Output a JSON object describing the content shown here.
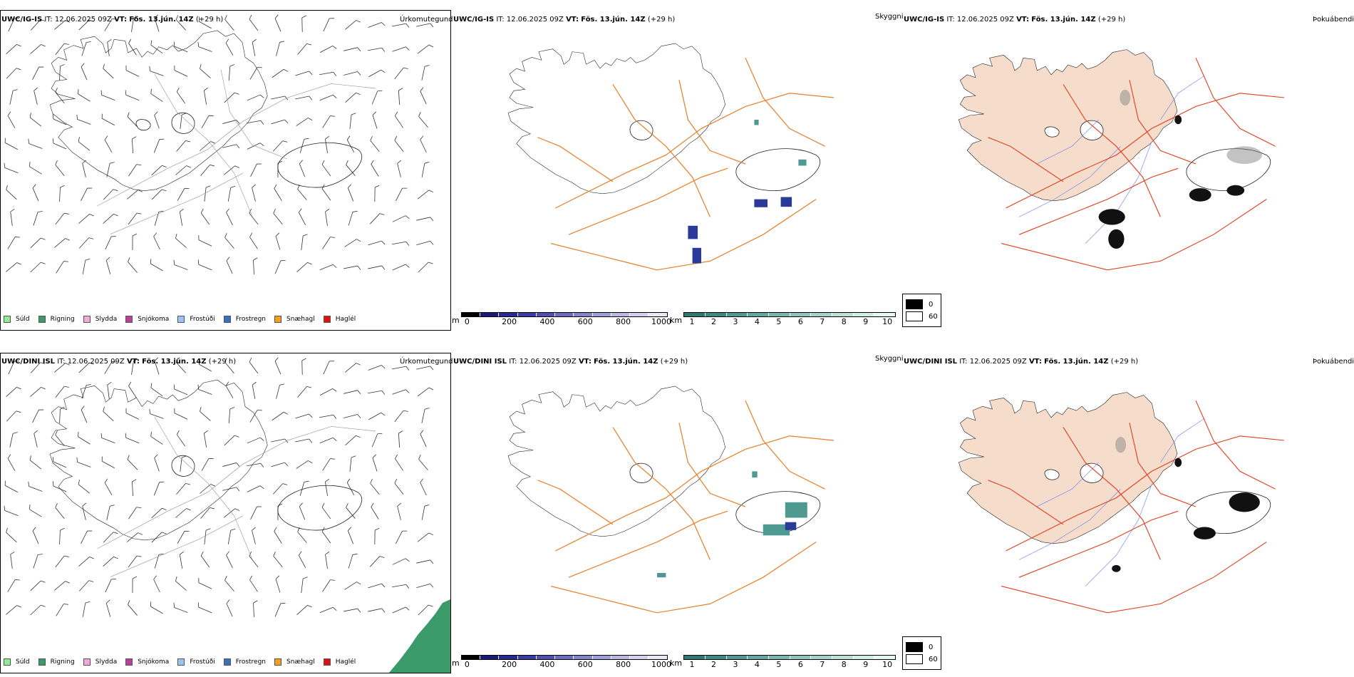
{
  "rows": [
    {
      "model": "UWC/IG-IS",
      "it_label": "IT:",
      "it_value": "12.06.2025 09Z",
      "vt_label": "VT:",
      "vt_value": "Fös. 13.jún. 14Z",
      "lead": "(+29 h)"
    },
    {
      "model": "UWC/DINI ISL",
      "it_label": "IT:",
      "it_value": "12.06.2025 09Z",
      "vt_label": "VT:",
      "vt_value": "Fös. 13.jún. 14Z",
      "lead": "(+29 h)"
    }
  ],
  "panel_titles": {
    "precip": "Úrkomutegund",
    "visibility": "Skyggni",
    "fog": "Þokuábendi"
  },
  "precip_legend": [
    {
      "label": "Súld",
      "color": "#90ee90"
    },
    {
      "label": "Rigning",
      "color": "#3a9a6a"
    },
    {
      "label": "Slydda",
      "color": "#f2a8d8"
    },
    {
      "label": "Snjókoma",
      "color": "#b8409a"
    },
    {
      "label": "Frostúði",
      "color": "#9cc4ee"
    },
    {
      "label": "Frostregn",
      "color": "#3a70c0"
    },
    {
      "label": "Snæhagl",
      "color": "#f0a020"
    },
    {
      "label": "Haglél",
      "color": "#e01010"
    }
  ],
  "cbar_m": {
    "unit": "m",
    "ticks": [
      "0",
      "200",
      "400",
      "600",
      "800",
      "1000"
    ],
    "colors": [
      "#000000",
      "#1a1a7a",
      "#2a2a96",
      "#3a3aa8",
      "#5050b4",
      "#6a6ac0",
      "#8484cc",
      "#9e9ed8",
      "#b8b8e2",
      "#d2d2ee",
      "#e8e8f6"
    ]
  },
  "cbar_km": {
    "unit": "km",
    "ticks": [
      "1",
      "2",
      "3",
      "4",
      "5",
      "6",
      "7",
      "8",
      "9",
      "10"
    ],
    "colors": [
      "#2a7a72",
      "#3a8a82",
      "#4e9a92",
      "#62a8a0",
      "#78b6ae",
      "#8ec4bc",
      "#a4d2ca",
      "#bae0d8",
      "#d0ece6",
      "#e6f6f2"
    ]
  },
  "fog_legend": [
    {
      "value": "0",
      "color": "#000000"
    },
    {
      "value": "60",
      "color": "#ffffff"
    }
  ],
  "colors": {
    "land_fog": "#f5dccb",
    "road_orange": "#e8802a",
    "road_red": "#e04020",
    "river_blue": "#8090f0",
    "rain_green": "#3a9a6a"
  }
}
